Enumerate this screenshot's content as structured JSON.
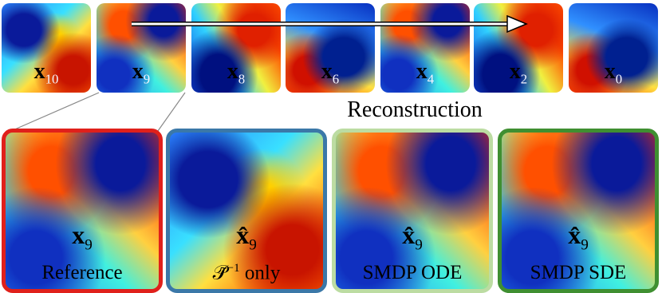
{
  "top_row": {
    "panels": [
      {
        "symbol": "x",
        "subscript": "10"
      },
      {
        "symbol": "x",
        "subscript": "9"
      },
      {
        "symbol": "x",
        "subscript": "8"
      },
      {
        "symbol": "x",
        "subscript": "6"
      },
      {
        "symbol": "x",
        "subscript": "4"
      },
      {
        "symbol": "x",
        "subscript": "2"
      },
      {
        "symbol": "x",
        "subscript": "0"
      }
    ]
  },
  "section_label": "Reconstruction",
  "bottom_row": {
    "panels": [
      {
        "symbol": "x",
        "subscript": "9",
        "caption": "Reference"
      },
      {
        "symbol": "x̂",
        "subscript": "9",
        "caption_math": "𝒫̃",
        "caption_sup": "−1",
        "caption": "only"
      },
      {
        "symbol": "x̂",
        "subscript": "9",
        "caption": "SMDP ODE"
      },
      {
        "symbol": "x̂",
        "subscript": "9",
        "caption": "SMDP SDE"
      }
    ]
  }
}
